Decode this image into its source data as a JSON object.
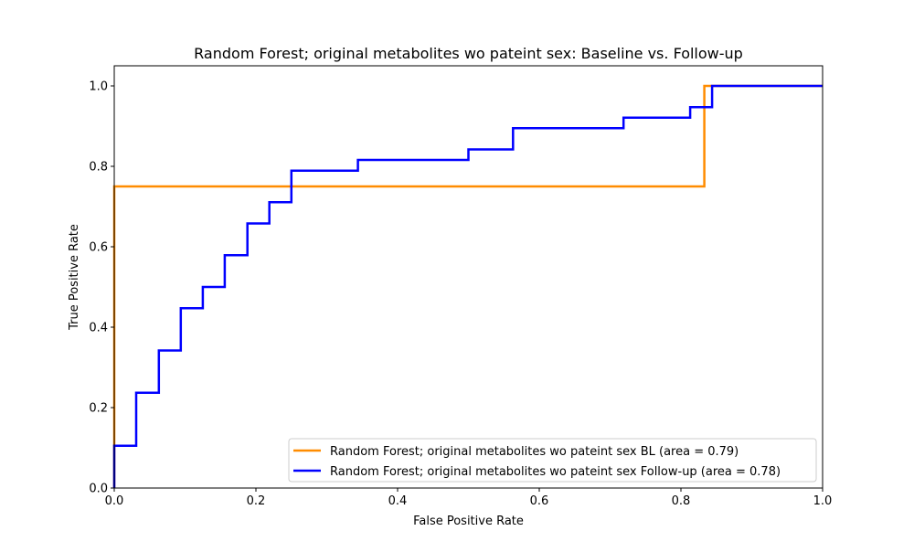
{
  "chart_data": {
    "type": "line",
    "title": "Random Forest; original metabolites wo pateint sex: Baseline vs. Follow-up",
    "xlabel": "False Positive Rate",
    "ylabel": "True Positive Rate",
    "xlim": [
      0.0,
      1.0
    ],
    "ylim": [
      0.0,
      1.05
    ],
    "xticks": [
      "0.0",
      "0.2",
      "0.4",
      "0.6",
      "0.8",
      "1.0"
    ],
    "yticks": [
      "0.0",
      "0.2",
      "0.4",
      "0.6",
      "0.8",
      "1.0"
    ],
    "grid": false,
    "legend_position": "lower-right",
    "series": [
      {
        "name": "Random Forest; original metabolites wo pateint sex BL (area = 0.79)",
        "color": "#ff8c00",
        "x": [
          0.0,
          0.0,
          0.0,
          0.833,
          0.833,
          1.0
        ],
        "y": [
          0.0,
          0.0,
          0.75,
          0.75,
          1.0,
          1.0
        ]
      },
      {
        "name": "Random Forest; original metabolites wo pateint sex Follow-up (area = 0.78)",
        "color": "#0000ff",
        "x": [
          0.0,
          0.0,
          0.031,
          0.031,
          0.063,
          0.063,
          0.094,
          0.094,
          0.125,
          0.125,
          0.156,
          0.156,
          0.188,
          0.188,
          0.219,
          0.219,
          0.25,
          0.25,
          0.344,
          0.344,
          0.5,
          0.5,
          0.563,
          0.563,
          0.719,
          0.719,
          0.813,
          0.813,
          0.844,
          0.844,
          1.0
        ],
        "y": [
          0.0,
          0.105,
          0.105,
          0.237,
          0.237,
          0.342,
          0.342,
          0.447,
          0.447,
          0.5,
          0.5,
          0.579,
          0.579,
          0.658,
          0.658,
          0.711,
          0.711,
          0.789,
          0.789,
          0.816,
          0.816,
          0.842,
          0.842,
          0.895,
          0.895,
          0.921,
          0.921,
          0.947,
          0.947,
          1.0,
          1.0
        ]
      }
    ]
  }
}
